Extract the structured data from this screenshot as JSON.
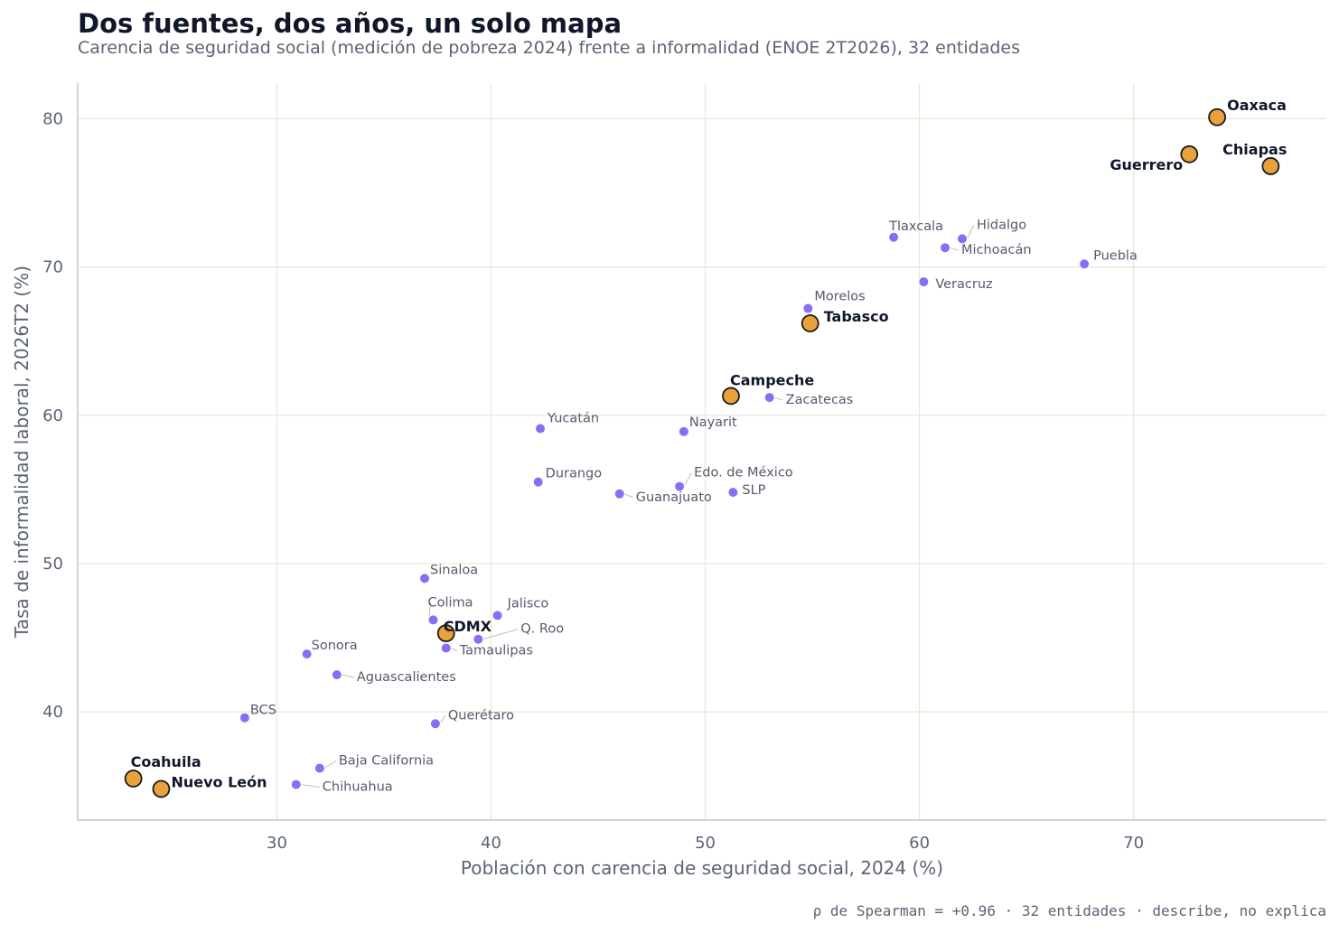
{
  "chart_data": {
    "type": "scatter",
    "title": "Dos fuentes, dos años, un solo mapa",
    "subtitle": "Carencia de seguridad social (medición de pobreza 2024) frente a informalidad (ENOE 2T2026), 32 entidades",
    "xlabel": "Población con carencia de seguridad social, 2024 (%)",
    "ylabel": "Tasa de informalidad laboral, 2026T2 (%)",
    "xlim": [
      20.7,
      79.0
    ],
    "ylim": [
      32.7,
      82.4
    ],
    "xticks": [
      30,
      40,
      50,
      60,
      70
    ],
    "yticks": [
      40,
      50,
      60,
      70,
      80
    ],
    "grid": true,
    "footnote": "ρ de Spearman = +0.96 · 32 entidades · describe, no explica",
    "colors": {
      "point": "#8b6cf6",
      "highlight": "#e9a23b",
      "highlight_edge": "#1a1a1a",
      "grid": "#e8e6d6",
      "axis": "#c9c6b8"
    },
    "points": [
      {
        "name": "Oaxaca",
        "x": 73.9,
        "y": 80.1,
        "highlight": true
      },
      {
        "name": "Chiapas",
        "x": 76.4,
        "y": 76.8,
        "highlight": true
      },
      {
        "name": "Guerrero",
        "x": 72.6,
        "y": 77.6,
        "highlight": true
      },
      {
        "name": "Tlaxcala",
        "x": 58.8,
        "y": 72.0,
        "highlight": false
      },
      {
        "name": "Hidalgo",
        "x": 62.0,
        "y": 71.9,
        "highlight": false
      },
      {
        "name": "Michoacán",
        "x": 61.2,
        "y": 71.3,
        "highlight": false
      },
      {
        "name": "Puebla",
        "x": 67.7,
        "y": 70.2,
        "highlight": false
      },
      {
        "name": "Veracruz",
        "x": 60.2,
        "y": 69.0,
        "highlight": false
      },
      {
        "name": "Morelos",
        "x": 54.8,
        "y": 67.2,
        "highlight": false
      },
      {
        "name": "Tabasco",
        "x": 54.9,
        "y": 66.2,
        "highlight": true
      },
      {
        "name": "Campeche",
        "x": 51.2,
        "y": 61.3,
        "highlight": true
      },
      {
        "name": "Zacatecas",
        "x": 53.0,
        "y": 61.2,
        "highlight": false
      },
      {
        "name": "Yucatán",
        "x": 42.3,
        "y": 59.1,
        "highlight": false
      },
      {
        "name": "Nayarit",
        "x": 49.0,
        "y": 58.9,
        "highlight": false
      },
      {
        "name": "Durango",
        "x": 42.2,
        "y": 55.5,
        "highlight": false
      },
      {
        "name": "Guanajuato",
        "x": 46.0,
        "y": 54.7,
        "highlight": false
      },
      {
        "name": "Edo. de México",
        "x": 48.8,
        "y": 55.2,
        "highlight": false
      },
      {
        "name": "SLP",
        "x": 51.3,
        "y": 54.8,
        "highlight": false
      },
      {
        "name": "Sinaloa",
        "x": 36.9,
        "y": 49.0,
        "highlight": false
      },
      {
        "name": "Colima",
        "x": 37.3,
        "y": 46.2,
        "highlight": false
      },
      {
        "name": "Jalisco",
        "x": 40.3,
        "y": 46.5,
        "highlight": false
      },
      {
        "name": "CDMX",
        "x": 37.9,
        "y": 45.3,
        "highlight": true
      },
      {
        "name": "Q. Roo",
        "x": 39.4,
        "y": 44.9,
        "highlight": false
      },
      {
        "name": "Tamaulipas",
        "x": 37.9,
        "y": 44.3,
        "highlight": false
      },
      {
        "name": "Sonora",
        "x": 31.4,
        "y": 43.9,
        "highlight": false
      },
      {
        "name": "Aguascalientes",
        "x": 32.8,
        "y": 42.5,
        "highlight": false
      },
      {
        "name": "BCS",
        "x": 28.5,
        "y": 39.6,
        "highlight": false
      },
      {
        "name": "Querétaro",
        "x": 37.4,
        "y": 39.2,
        "highlight": false
      },
      {
        "name": "Baja California",
        "x": 32.0,
        "y": 36.2,
        "highlight": false
      },
      {
        "name": "Chihuahua",
        "x": 30.9,
        "y": 35.1,
        "highlight": false
      },
      {
        "name": "Coahuila",
        "x": 23.3,
        "y": 35.5,
        "highlight": true
      },
      {
        "name": "Nuevo León",
        "x": 24.6,
        "y": 34.8,
        "highlight": true
      }
    ]
  }
}
